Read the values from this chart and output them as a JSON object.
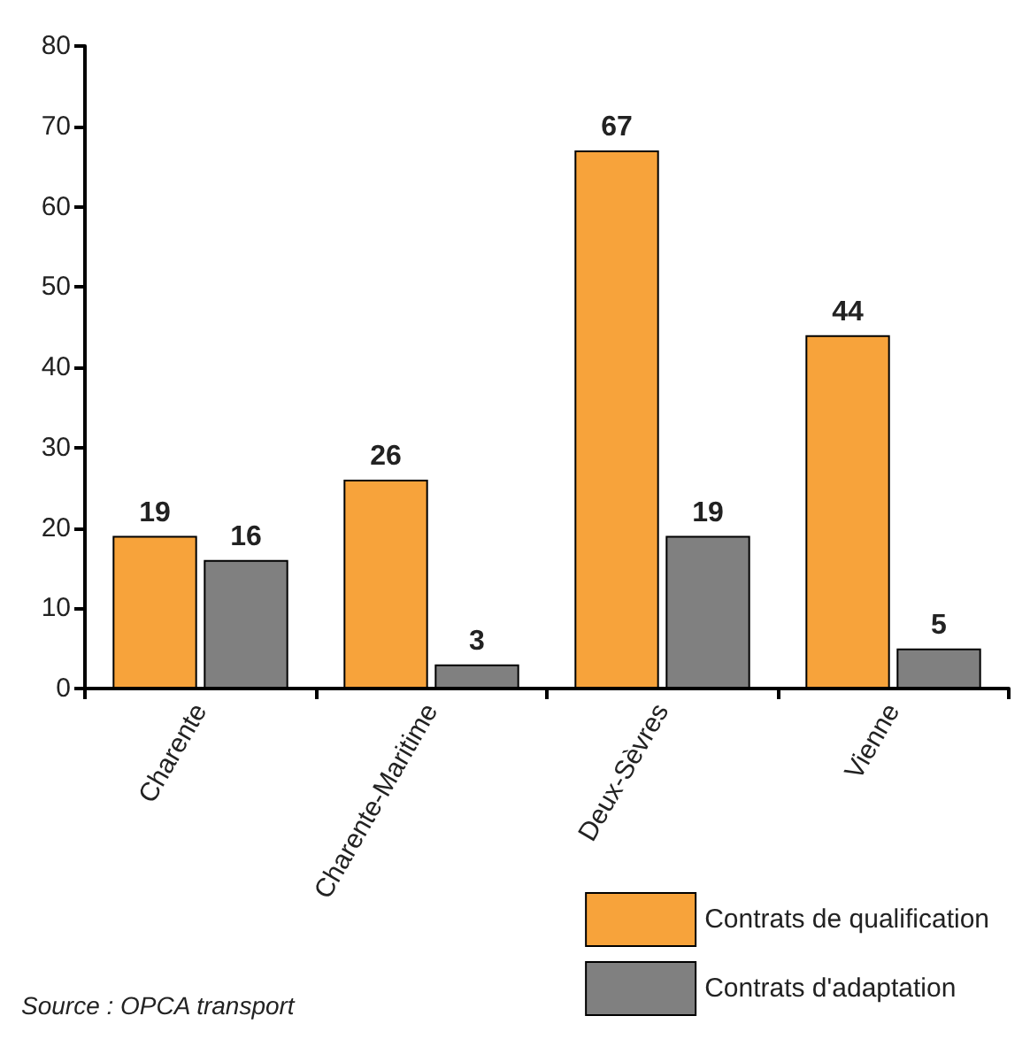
{
  "chart_data": {
    "type": "bar",
    "categories": [
      "Charente",
      "Charente-Maritime",
      "Deux-Sèvres",
      "Vienne"
    ],
    "series": [
      {
        "name": "Contrats de qualification",
        "color": "#f7a33b",
        "values": [
          19,
          26,
          67,
          44
        ]
      },
      {
        "name": "Contrats d'adaptation",
        "color": "#808080",
        "values": [
          16,
          3,
          19,
          5
        ]
      }
    ],
    "ylim": [
      0,
      80
    ],
    "yticks": [
      0,
      10,
      20,
      30,
      40,
      50,
      60,
      70,
      80
    ],
    "grid": false,
    "data_labels": true,
    "legend": "bottom right",
    "annotations": [
      "Source : OPCA transport"
    ]
  }
}
